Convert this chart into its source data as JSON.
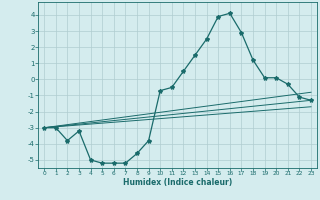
{
  "title": "",
  "xlabel": "Humidex (Indice chaleur)",
  "xlim": [
    -0.5,
    23.5
  ],
  "ylim": [
    -5.5,
    4.8
  ],
  "xticks": [
    0,
    1,
    2,
    3,
    4,
    5,
    6,
    7,
    8,
    9,
    10,
    11,
    12,
    13,
    14,
    15,
    16,
    17,
    18,
    19,
    20,
    21,
    22,
    23
  ],
  "yticks": [
    -5,
    -4,
    -3,
    -2,
    -1,
    0,
    1,
    2,
    3,
    4
  ],
  "background_color": "#d4ecee",
  "grid_color": "#b0cdd0",
  "line_color": "#1a6b6b",
  "line1_x": [
    0,
    1,
    2,
    3,
    4,
    5,
    6,
    7,
    8,
    9,
    10,
    11,
    12,
    13,
    14,
    15,
    16,
    17,
    18,
    19,
    20,
    21,
    22,
    23
  ],
  "line1_y": [
    -3.0,
    -3.0,
    -3.8,
    -3.2,
    -5.0,
    -5.2,
    -5.2,
    -5.2,
    -4.6,
    -3.8,
    -0.7,
    -0.5,
    0.5,
    1.5,
    2.5,
    3.9,
    4.1,
    2.9,
    1.2,
    0.1,
    0.1,
    -0.3,
    -1.1,
    -1.3
  ],
  "line2_x": [
    0,
    23
  ],
  "line2_y": [
    -3.0,
    -1.3
  ],
  "line3_x": [
    0,
    23
  ],
  "line3_y": [
    -3.0,
    -1.7
  ],
  "line4_x": [
    0,
    23
  ],
  "line4_y": [
    -3.0,
    -0.8
  ]
}
